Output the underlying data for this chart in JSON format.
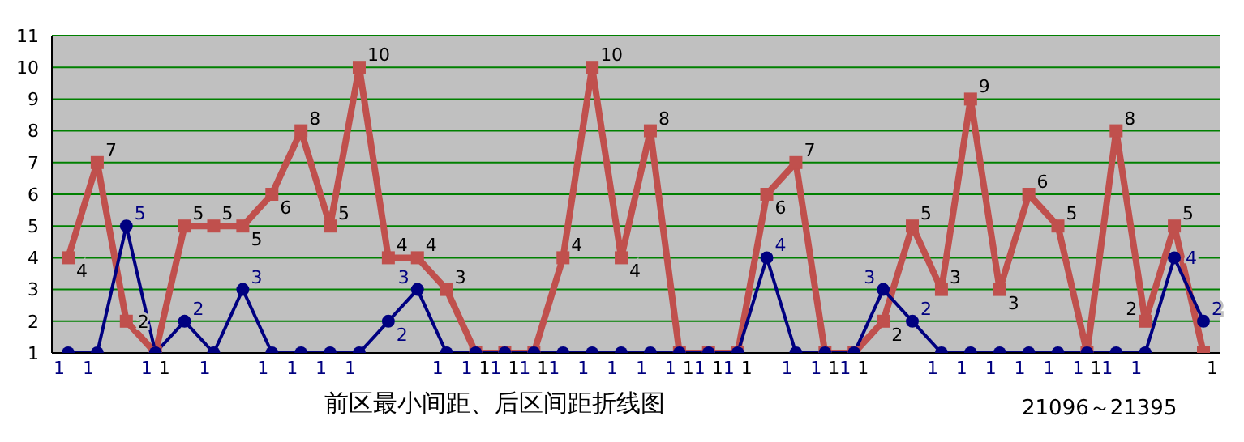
{
  "chart_data": {
    "type": "line",
    "title": "前区最小间距、后区间距折线图",
    "annotations": [
      "21096～21395"
    ],
    "categories": [
      null,
      null,
      null,
      null,
      null,
      null,
      null,
      null,
      null,
      null,
      null,
      null,
      null,
      null,
      null,
      null,
      null,
      null,
      null,
      null,
      null,
      null,
      null,
      null,
      null,
      null,
      null,
      null,
      null,
      null,
      null,
      null,
      null,
      null,
      null,
      null,
      null,
      null,
      null,
      null
    ],
    "series": [
      {
        "color": "#c0504d",
        "marker": "square",
        "values": [
          4,
          7,
          2,
          1,
          5,
          5,
          5,
          6,
          8,
          5,
          10,
          4,
          4,
          3,
          1,
          1,
          1,
          4,
          10,
          4,
          8,
          1,
          1,
          1,
          6,
          7,
          1,
          1,
          2,
          5,
          3,
          9,
          3,
          6,
          5,
          1,
          8,
          2,
          5,
          1
        ]
      },
      {
        "color": "#000080",
        "marker": "circle",
        "values": [
          1,
          1,
          5,
          1,
          2,
          1,
          3,
          1,
          1,
          1,
          1,
          2,
          3,
          1,
          1,
          1,
          1,
          1,
          1,
          1,
          1,
          1,
          1,
          1,
          4,
          1,
          1,
          1,
          3,
          2,
          1,
          1,
          1,
          1,
          1,
          1,
          1,
          1,
          4,
          2
        ]
      }
    ],
    "ylim": [
      1,
      11
    ],
    "yticks": [
      1,
      2,
      3,
      4,
      5,
      6,
      7,
      8,
      9,
      10,
      11
    ],
    "grid": "y",
    "data_labels": true,
    "legend": false
  }
}
